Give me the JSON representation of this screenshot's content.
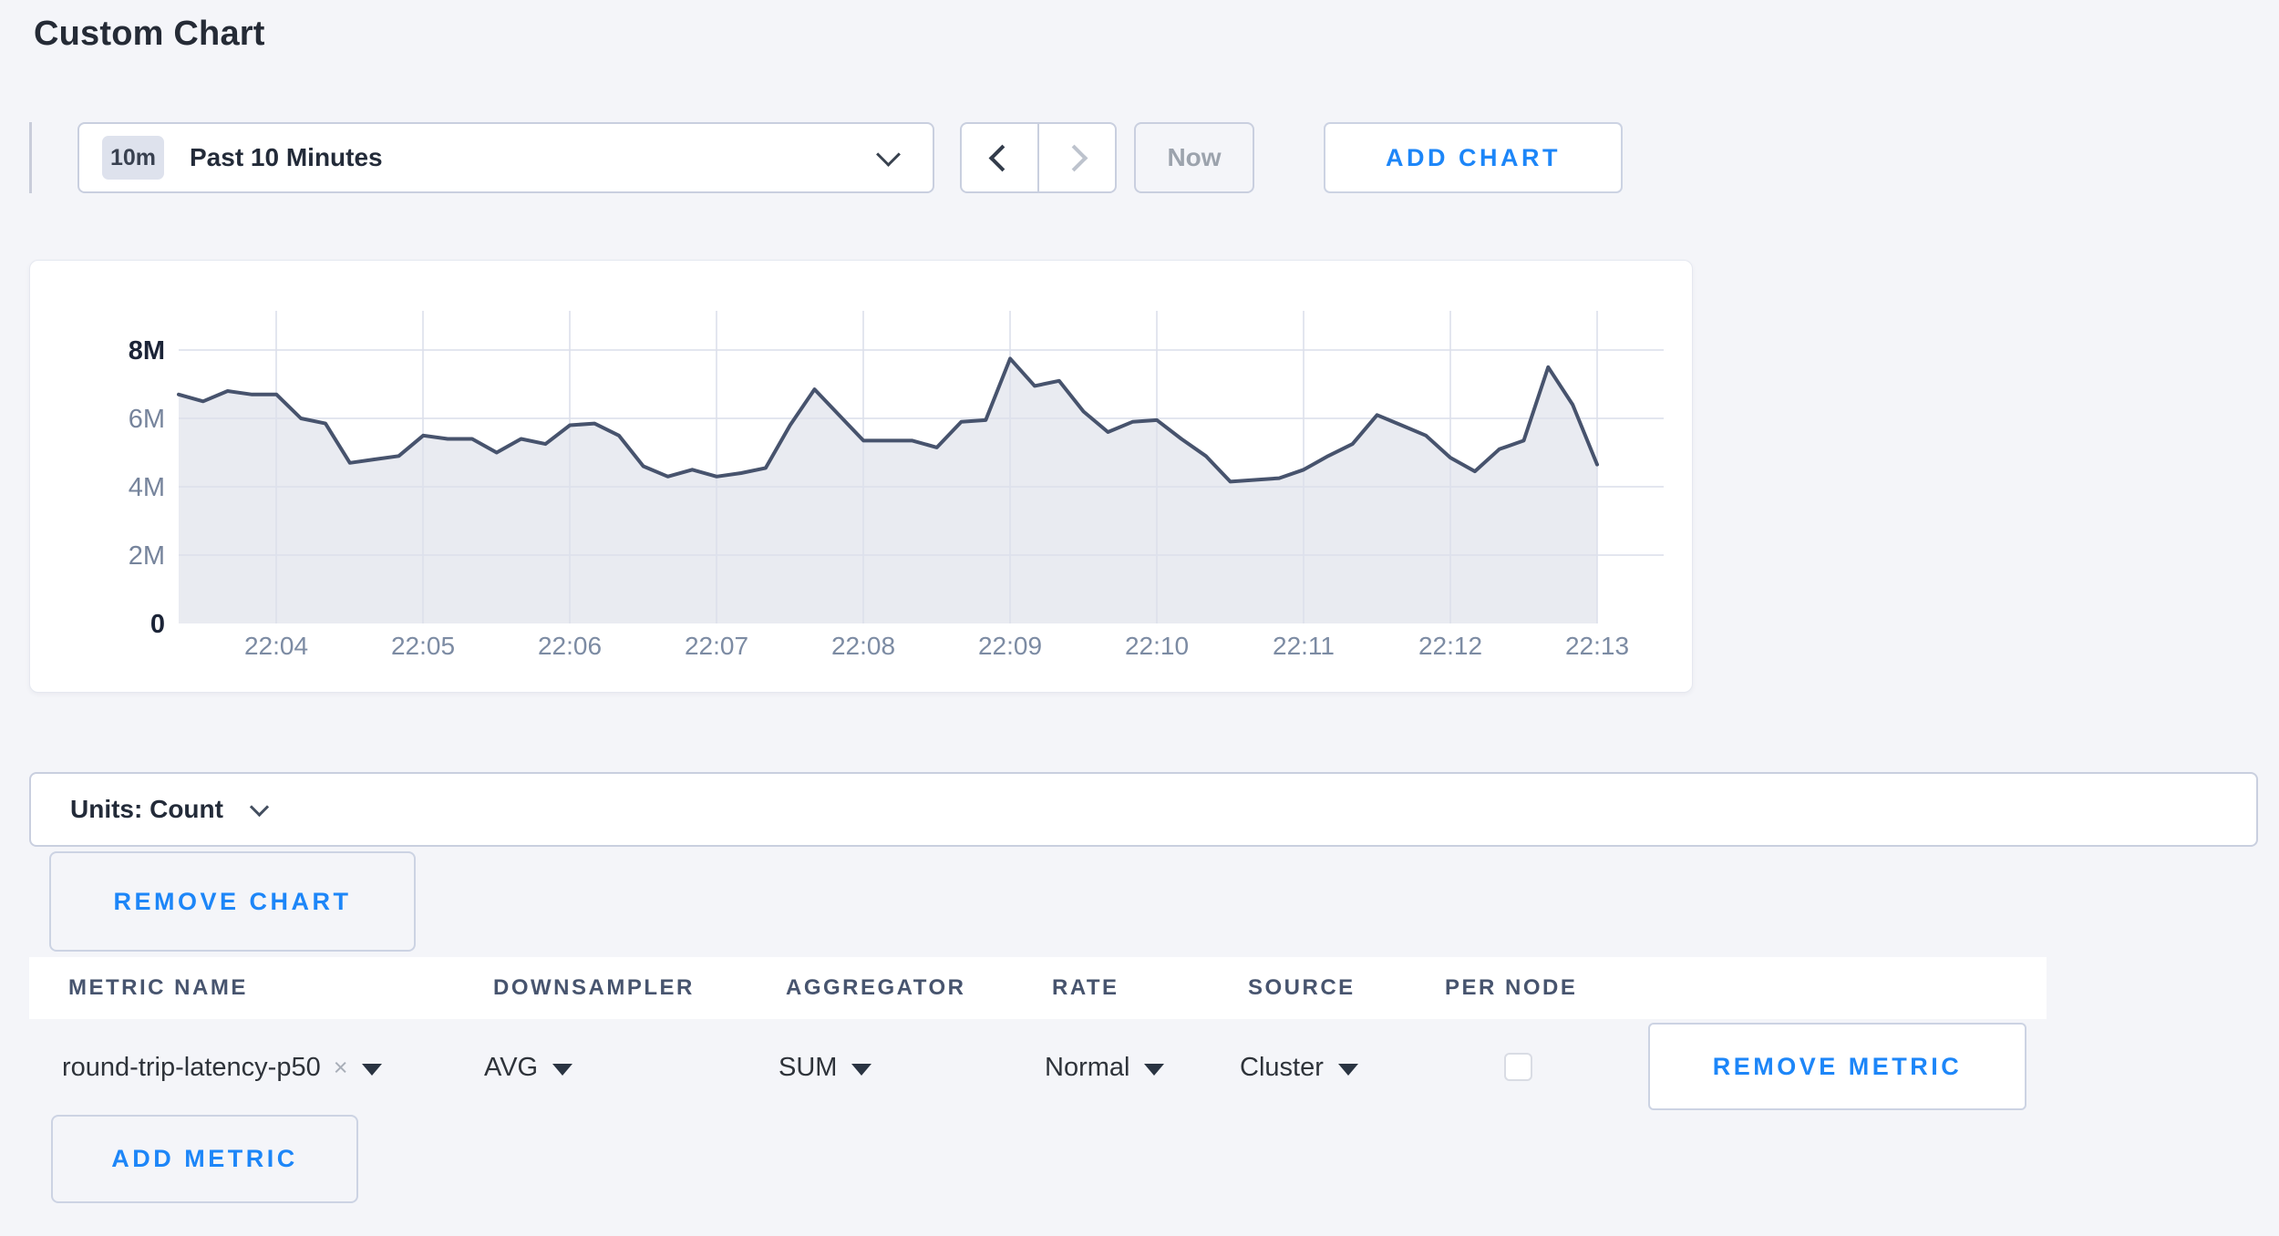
{
  "page": {
    "title": "Custom Chart"
  },
  "toolbar": {
    "time_badge": "10m",
    "time_label": "Past 10 Minutes",
    "now_label": "Now",
    "add_chart_label": "ADD CHART"
  },
  "chart_panel": {
    "units_label": "Units: Count",
    "remove_chart_label": "REMOVE CHART"
  },
  "table": {
    "columns": [
      "METRIC NAME",
      "DOWNSAMPLER",
      "AGGREGATOR",
      "RATE",
      "SOURCE",
      "PER NODE"
    ],
    "metric": {
      "name": "round-trip-latency-p50",
      "remove_x": "×",
      "downsampler": "AVG",
      "aggregator": "SUM",
      "rate": "Normal",
      "source": "Cluster",
      "per_node": false,
      "remove_label": "REMOVE METRIC"
    },
    "add_metric_label": "ADD METRIC"
  },
  "colors": {
    "accent_blue": "#1d86f8",
    "line": "#47536d",
    "fill": "#e9ebf1",
    "gridline": "#dde1ec",
    "axis_label": "#76849c",
    "axis_label_strong": "#1b2437",
    "x_label": "#7c8ba3"
  },
  "chart_data": {
    "type": "area",
    "series_name": "round-trip-latency-p50",
    "unit": "Count",
    "start_time": "22:03:20",
    "interval_seconds": 10,
    "ylim": [
      0,
      8000000
    ],
    "y_tick_labels": [
      "0",
      "2M",
      "4M",
      "6M",
      "8M"
    ],
    "x_tick_labels": [
      "22:04",
      "22:05",
      "22:06",
      "22:07",
      "22:08",
      "22:09",
      "22:10",
      "22:11",
      "22:12",
      "22:13"
    ],
    "grid": true,
    "legend": "none",
    "values_millions": [
      6.7,
      6.5,
      6.8,
      6.7,
      6.7,
      6.0,
      5.85,
      4.7,
      4.8,
      4.9,
      5.5,
      5.4,
      5.4,
      5.0,
      5.4,
      5.25,
      5.8,
      5.85,
      5.5,
      4.6,
      4.3,
      4.5,
      4.3,
      4.4,
      4.55,
      5.8,
      6.85,
      6.1,
      5.35,
      5.35,
      5.35,
      5.15,
      5.9,
      5.95,
      7.75,
      6.95,
      7.1,
      6.2,
      5.6,
      5.9,
      5.95,
      5.4,
      4.9,
      4.15,
      4.2,
      4.25,
      4.5,
      4.9,
      5.25,
      6.1,
      5.8,
      5.5,
      4.85,
      4.45,
      5.1,
      5.35,
      7.5,
      6.4,
      4.65
    ]
  }
}
